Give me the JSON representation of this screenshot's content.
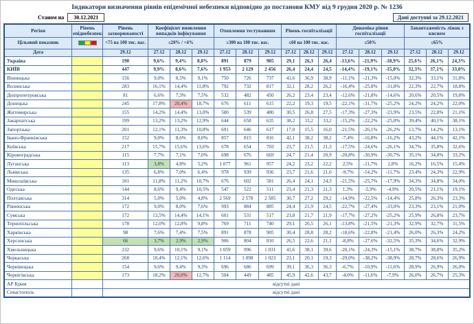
{
  "title": "Індикатори визначення рівнів епідемічної небезпеки відповідно до постанови КМУ від 9 грудня 2020 р. № 1236",
  "as_of": {
    "label": "Станом на",
    "date": "30.12.2021"
  },
  "available": {
    "label": "Дані доступні за",
    "date": "29.12.2021"
  },
  "legend": {
    "colors": [
      "#00B050",
      "#FFFF00",
      "#FF0000"
    ]
  },
  "table": {
    "header": {
      "region": "Регіон",
      "epid": "Рівень епіднебезпеки",
      "target_label": "Цільовий показник",
      "date_label": "Дата",
      "groups": [
        {
          "label": "Рівень захворюваності",
          "target": "<75 на 100 тис. нас.",
          "dates": [
            "29.12"
          ],
          "cols": 1
        },
        {
          "label": "Коефіцієнт виявлення випадків інфікування",
          "target": "≤20% / <4%",
          "dates": [
            "27.12",
            "28.12",
            "29.12"
          ],
          "cols": 3
        },
        {
          "label": "Охоплення тестуванням",
          "target": "≥300 на 100 тис. нас.",
          "dates": [
            "27.12",
            "28.12",
            "29.12"
          ],
          "cols": 3
        },
        {
          "label": "Рівень госпіталізації",
          "target": "≤60 на 100 тис. нас.",
          "dates": [
            "27.12",
            "28.12",
            "29.12"
          ],
          "cols": 3
        },
        {
          "label": "Динаміка рівня госпіталізації",
          "target": "≤50%",
          "dates": [
            "27.12",
            "28.12",
            "29.12"
          ],
          "cols": 3
        },
        {
          "label": "Завантаженість ліжок з киснем",
          "target": "≤65%",
          "dates": [
            "27.12",
            "28.12",
            "29.12"
          ],
          "cols": 3
        }
      ]
    },
    "rows": [
      {
        "region": "Україна",
        "bold": true,
        "values": [
          "190",
          "9,6%",
          "9,4%",
          "8,8%",
          "891",
          "879",
          "905",
          "29,1",
          "26,3",
          "26,4",
          "-13,6%",
          "-21,9%",
          "-18,9%",
          "25,6%",
          "26,1%",
          "24,3%"
        ]
      },
      {
        "region": "КИЇВ",
        "bold": true,
        "values": [
          "447",
          "9,9%",
          "8,6%",
          "7,6%",
          "1 953",
          "2 129",
          "2 456",
          "26,4",
          "24,4",
          "24,5",
          "-14,4%",
          "-19,1%",
          "-15,0%",
          "32,3%",
          "37,1%",
          "33,0%"
        ]
      },
      {
        "region": "Вінницька",
        "values": [
          "156",
          "9,0%",
          "8,5%",
          "9,1%",
          "750",
          "726",
          "737",
          "41,6",
          "36,9",
          "38,9",
          "-11,1%",
          "-21,3%",
          "-15,0%",
          "32,3%",
          "33,1%",
          "31,8%"
        ]
      },
      {
        "region": "Волинська",
        "values": [
          "283",
          "16,1%",
          "14,4%",
          "11,8%",
          "792",
          "732",
          "817",
          "32,1",
          "28,2",
          "26,2",
          "-16,4%",
          "-25,8%",
          "-31,8%",
          "22,3%",
          "22,7%",
          "18,8%"
        ]
      },
      {
        "region": "Дніпропетровська",
        "values": [
          "81",
          "6,6%",
          "7,3%",
          "7,5%",
          "532",
          "482",
          "450",
          "26,2",
          "23,4",
          "23,4",
          "-12,6%",
          "-21,8%",
          "-14,6%",
          "20,6%",
          "20,5%",
          "19,8%"
        ]
      },
      {
        "region": "Донецька",
        "hl": {
          "2": "red"
        },
        "values": [
          "245",
          "17,8%",
          "20,4%",
          "18,7%",
          "676",
          "611",
          "615",
          "22,2",
          "19,3",
          "19,5",
          "-22,1%",
          "-31,7%",
          "-25,2%",
          "24,2%",
          "24,2%",
          "22,0%"
        ]
      },
      {
        "region": "Житомирська",
        "values": [
          "155",
          "14,2%",
          "14,4%",
          "13,0%",
          "580",
          "539",
          "480",
          "30,5",
          "26,8",
          "27,5",
          "-17,3%",
          "-27,3%",
          "-23,9%",
          "23,5%",
          "22,8%",
          "21,1%"
        ]
      },
      {
        "region": "Закарпатська",
        "values": [
          "199",
          "13,2%",
          "13,2%",
          "12,9%",
          "644",
          "658",
          "635",
          "38,2",
          "33,2",
          "33,2",
          "-15,2%",
          "-22,2%",
          "-25,0%",
          "39,4%",
          "40,1%",
          "38,1%"
        ]
      },
      {
        "region": "Запорізька",
        "values": [
          "201",
          "12,1%",
          "11,3%",
          "10,8%",
          "691",
          "646",
          "617",
          "17,0",
          "15,5",
          "16,0",
          "-21,5%",
          "-26,1%",
          "-26,2%",
          "13,7%",
          "14,2%",
          "13,1%"
        ]
      },
      {
        "region": "Івано-Франківська",
        "values": [
          "152",
          "9,0%",
          "8,6%",
          "8,0%",
          "857",
          "815",
          "816",
          "42,1",
          "38,2",
          "38,2",
          "-7,4%",
          "-16,8%",
          "-16,2%",
          "43,2%",
          "44,1%",
          "42,1%"
        ]
      },
      {
        "region": "Київська",
        "values": [
          "217",
          "15,7%",
          "15,6%",
          "13,6%",
          "678",
          "654",
          "703",
          "23,7",
          "21,5",
          "21,3",
          "-17,5%",
          "-24,6%",
          "-26,1%",
          "34,7%",
          "35,8%",
          "32,6%"
        ]
      },
      {
        "region": "Кіровоградська",
        "values": [
          "115",
          "7,7%",
          "7,1%",
          "7,0%",
          "698",
          "676",
          "669",
          "24,7",
          "21,4",
          "20,9",
          "-20,8%",
          "-30,9%",
          "-30,7%",
          "35,1%",
          "34,8%",
          "33,2%"
        ]
      },
      {
        "region": "Луганська",
        "hl": {
          "1": "green"
        },
        "values": [
          "113",
          "3,8%",
          "4,8%",
          "5,2%",
          "1 077",
          "961",
          "957",
          "24,2",
          "23,2",
          "22,2",
          "2,5%",
          "-11,7%",
          "2,8%",
          "16,2%",
          "16,5%",
          "15,4%"
        ]
      },
      {
        "region": "Львівська",
        "values": [
          "135",
          "6,8%",
          "7,0%",
          "6,4%",
          "978",
          "939",
          "936",
          "23,7",
          "21,6",
          "21,6",
          "-9,7%",
          "-14,2%",
          "-11,7%",
          "23,4%",
          "24,3%",
          "22,9%"
        ]
      },
      {
        "region": "Миколаївська",
        "values": [
          "181",
          "11,8%",
          "11,2%",
          "10,7%",
          "676",
          "602",
          "581",
          "26,4",
          "24,1",
          "24,3",
          "-21,5%",
          "-25,7%",
          "-17,9%",
          "34,3%",
          "34,8%",
          "34,0%"
        ]
      },
      {
        "region": "Одеська",
        "values": [
          "144",
          "8,6%",
          "9,4%",
          "10,5%",
          "547",
          "522",
          "511",
          "23,4",
          "21,3",
          "21,3",
          "1,3%",
          "-5,9%",
          "-4,9%",
          "20,5%",
          "21,1%",
          "19,1%"
        ]
      },
      {
        "region": "Полтавська",
        "values": [
          "314",
          "5,0%",
          "5,0%",
          "4,8%",
          "2 569",
          "2 578",
          "2 585",
          "30,7",
          "27,2",
          "29,2",
          "-14,9%",
          "-22,5%",
          "-14,4%",
          "25,8%",
          "26,3%",
          "23,3%"
        ]
      },
      {
        "region": "Рівненська",
        "values": [
          "172",
          "9,0%",
          "8,0%",
          "7,6%",
          "993",
          "884",
          "885",
          "24,4",
          "21,9",
          "24,5",
          "-22,7%",
          "-27,4%",
          "-33,0%",
          "23,3%",
          "23,1%",
          "21,0%"
        ]
      },
      {
        "region": "Сумська",
        "values": [
          "172",
          "13,5%",
          "14,4%",
          "14,1%",
          "601",
          "531",
          "517",
          "23,8",
          "21,7",
          "21,9",
          "-17,7%",
          "-27,2%",
          "-25,2%",
          "25,9%",
          "26,8%",
          "23,7%"
        ]
      },
      {
        "region": "Тернопільська",
        "values": [
          "178",
          "12,0%",
          "12,8%",
          "9,8%",
          "769",
          "711",
          "740",
          "29,1",
          "26,5",
          "26,1",
          "-13,8%",
          "-21,5%",
          "-21,3%",
          "32,9%",
          "32,7%",
          "31,5%"
        ]
      },
      {
        "region": "Харківська",
        "values": [
          "98",
          "7,6%",
          "7,4%",
          "7,5%",
          "891",
          "878",
          "905",
          "30,4",
          "28,8",
          "28,2",
          "-18,6%",
          "-22,8%",
          "-21,4%",
          "26,0%",
          "26,3%",
          "24,2%"
        ]
      },
      {
        "region": "Херсонська",
        "hl": {
          "0": "green",
          "1": "green",
          "2": "green",
          "3": "green"
        },
        "values": [
          "66",
          "3,7%",
          "2,9%",
          "2,9%",
          "906",
          "804",
          "810",
          "26,5",
          "22,6",
          "21,1",
          "-8,8%",
          "-27,6%",
          "-32,5%",
          "35,3%",
          "34,6%",
          "32,9%"
        ]
      },
      {
        "region": "Хмельницька",
        "values": [
          "232",
          "9,6%",
          "10,1%",
          "9,1%",
          "1 059",
          "996",
          "1 031",
          "41,6",
          "38,1",
          "39,6",
          "-20,1%",
          "-24,3%",
          "-15,1%",
          "38,7%",
          "38,8%",
          "35,2%"
        ]
      },
      {
        "region": "Черкаська",
        "values": [
          "268",
          "10,4%",
          "12,1%",
          "12,6%",
          "1 114",
          "1 098",
          "1 023",
          "23,1",
          "20,1",
          "19,3",
          "-29,0%",
          "-38,2%",
          "-38,9%",
          "28,7%",
          "28,6%",
          "26,9%"
        ]
      },
      {
        "region": "Чернівецька",
        "values": [
          "154",
          "9,6%",
          "9,4%",
          "9,3%",
          "696",
          "686",
          "699",
          "39,1",
          "36,3",
          "36,3",
          "-6,7%",
          "-10,9%",
          "-11,6%",
          "28,9%",
          "26,9%",
          "26,0%"
        ]
      },
      {
        "region": "Чернігівська",
        "hl": {
          "2": "red"
        },
        "values": [
          "173",
          "18,2%",
          "20,0%",
          "12,7%",
          "504",
          "449",
          "485",
          "45,9",
          "42,6",
          "43,7",
          "-4,0%",
          "-11,6%",
          "-7,9%",
          "26,0%",
          "26,7%",
          "25,3%"
        ]
      },
      {
        "region": "АР Крим",
        "no_data": "відсутні дані"
      },
      {
        "region": "Севастополь",
        "no_data": "відсутні дані"
      }
    ]
  }
}
